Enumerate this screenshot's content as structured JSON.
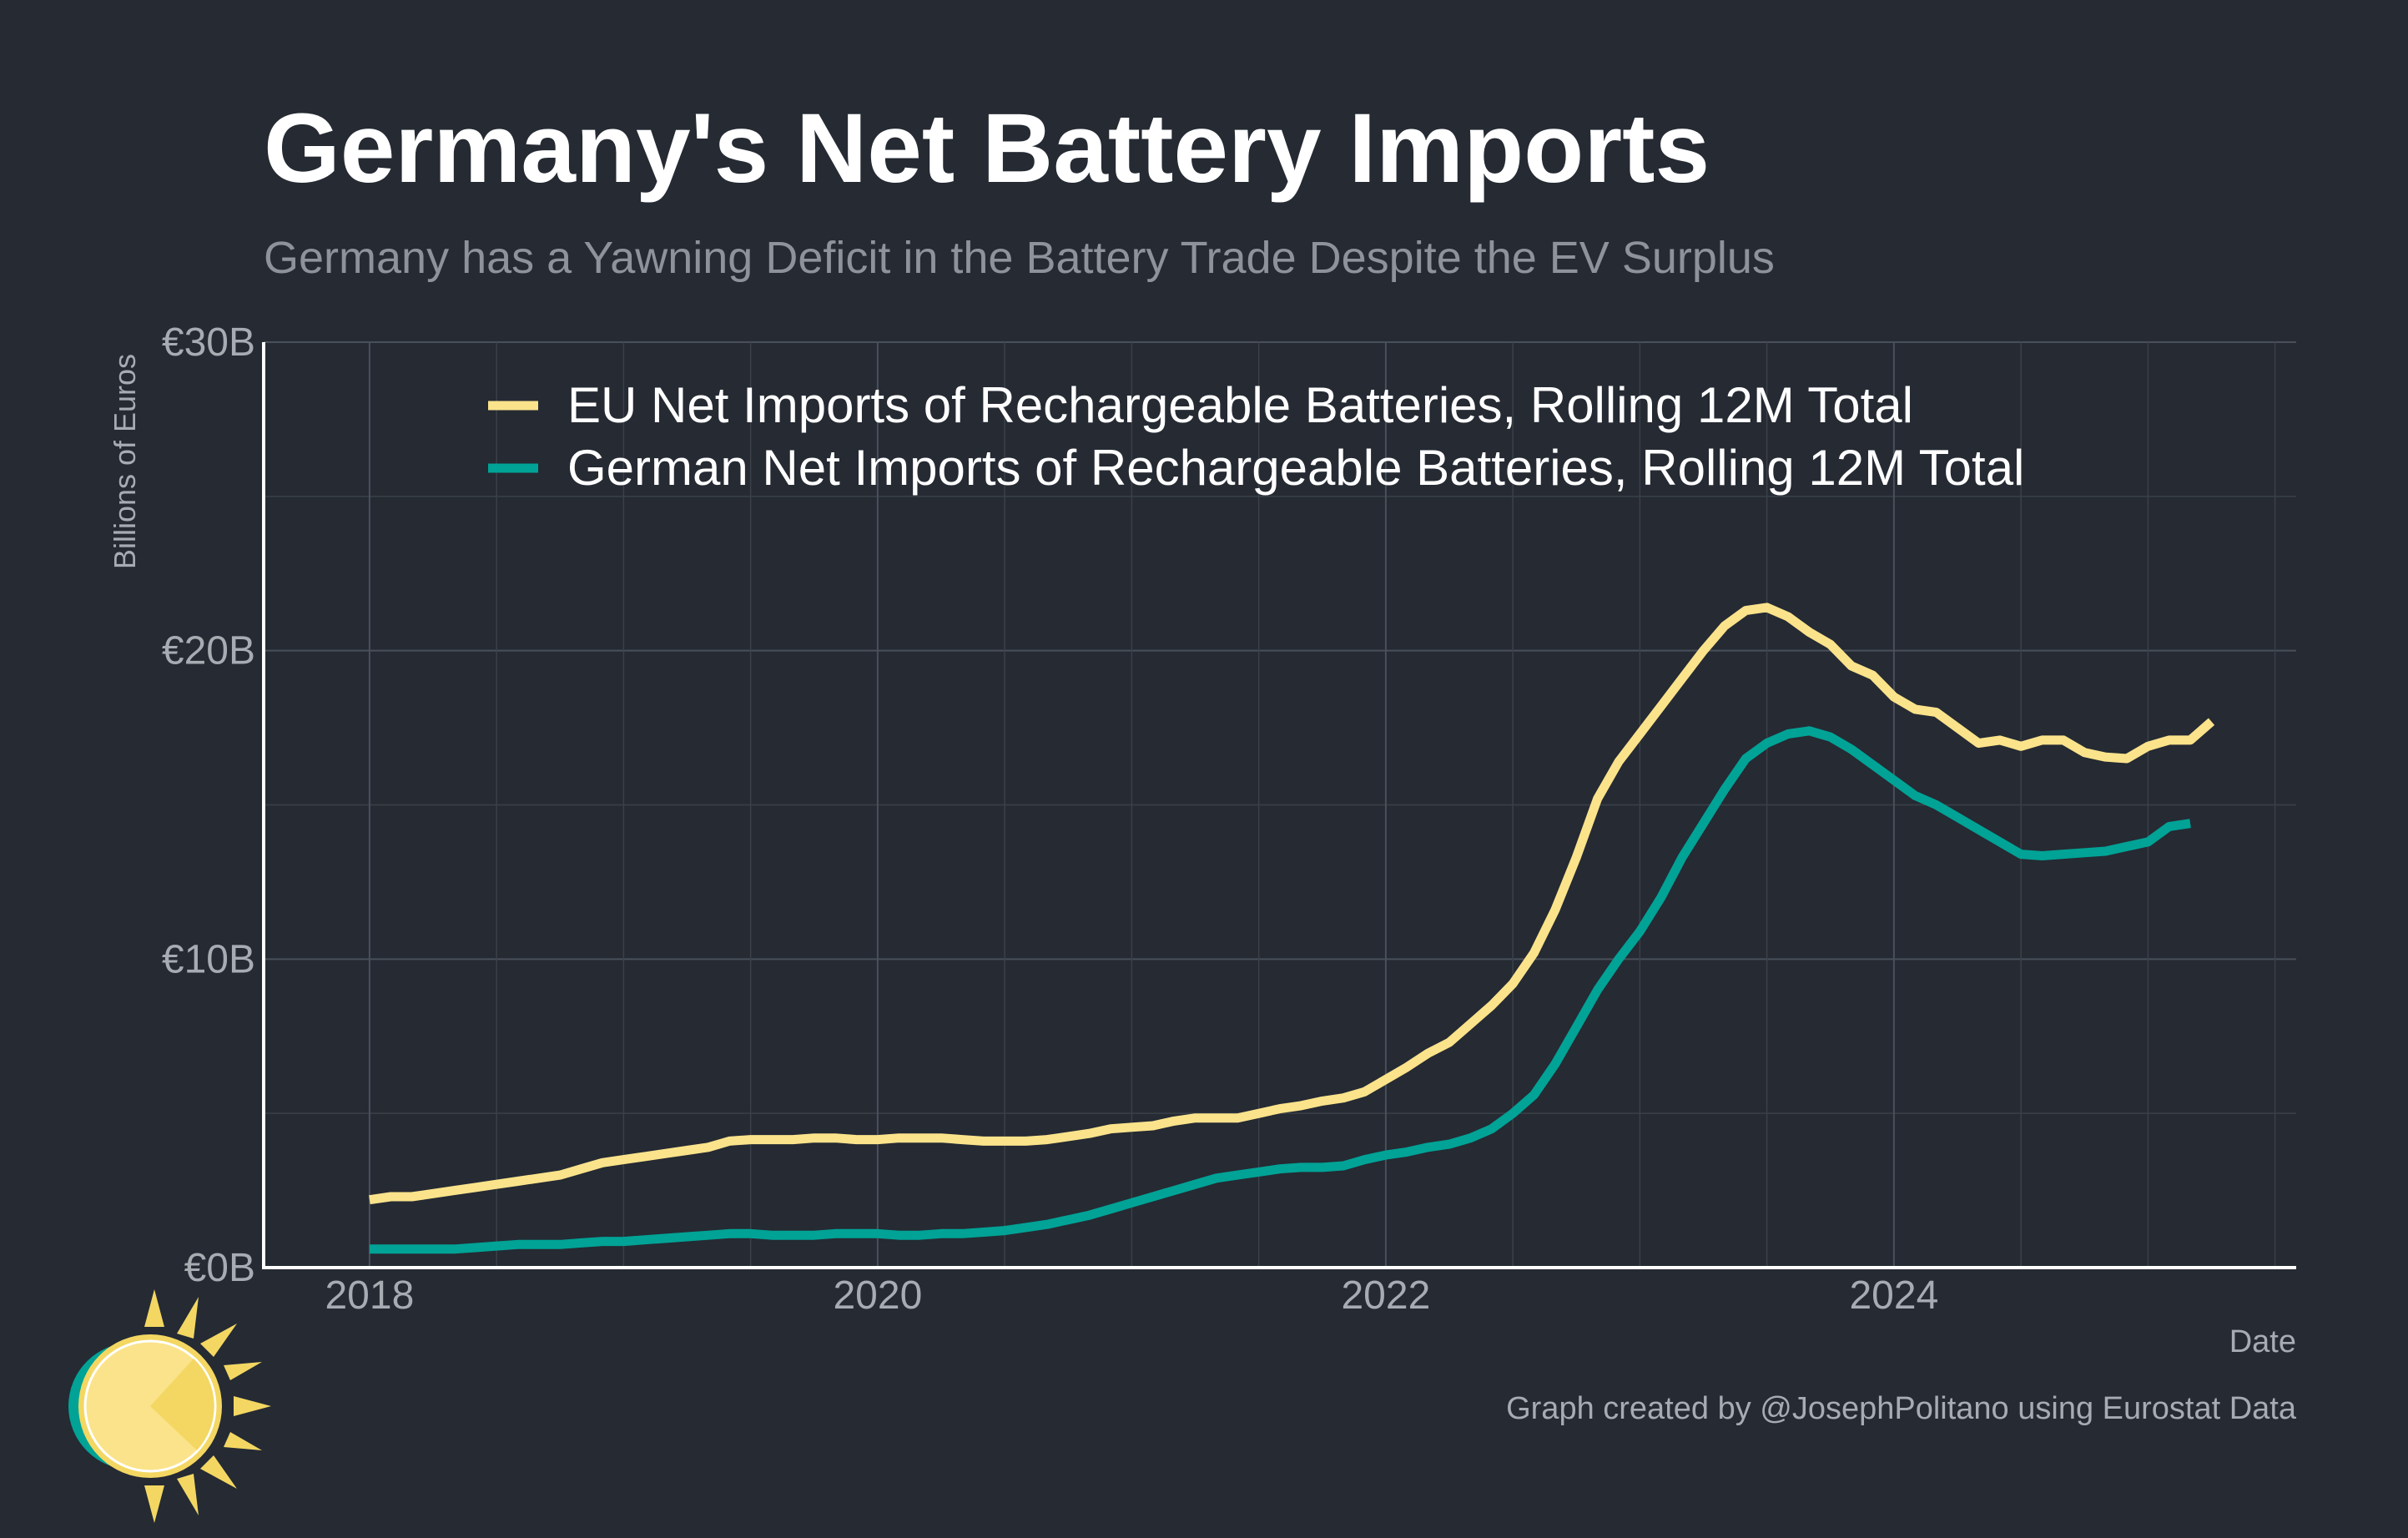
{
  "chart_data": {
    "type": "line",
    "title": "Germany's Net Battery Imports",
    "subtitle": "Germany has a Yawning Deficit in the Battery Trade Despite the EV Surplus",
    "xlabel": "Date",
    "ylabel": "Billions of Euros",
    "caption": "Graph created by @JosephPolitano using Eurostat Data",
    "x_ticks": [
      "2018",
      "2020",
      "2022",
      "2024"
    ],
    "y_ticks": [
      "€0B",
      "€10B",
      "€20B",
      "€30B"
    ],
    "ylim": [
      0,
      30
    ],
    "xlim": [
      "2017-08",
      "2025-08"
    ],
    "grid": true,
    "legend_position": "top-left",
    "series": [
      {
        "name": "EU Net Imports of Rechargeable Batteries, Rolling 12M Total",
        "color": "#fbe38b",
        "points": [
          [
            "2018-01",
            2.2
          ],
          [
            "2018-02",
            2.3
          ],
          [
            "2018-03",
            2.3
          ],
          [
            "2018-04",
            2.4
          ],
          [
            "2018-05",
            2.5
          ],
          [
            "2018-06",
            2.6
          ],
          [
            "2018-07",
            2.7
          ],
          [
            "2018-08",
            2.8
          ],
          [
            "2018-09",
            2.9
          ],
          [
            "2018-10",
            3.0
          ],
          [
            "2018-11",
            3.2
          ],
          [
            "2018-12",
            3.4
          ],
          [
            "2019-01",
            3.5
          ],
          [
            "2019-02",
            3.6
          ],
          [
            "2019-03",
            3.7
          ],
          [
            "2019-04",
            3.8
          ],
          [
            "2019-05",
            3.9
          ],
          [
            "2019-06",
            4.1
          ],
          [
            "2019-07",
            4.15
          ],
          [
            "2019-08",
            4.15
          ],
          [
            "2019-09",
            4.15
          ],
          [
            "2019-10",
            4.2
          ],
          [
            "2019-11",
            4.2
          ],
          [
            "2019-12",
            4.15
          ],
          [
            "2020-01",
            4.15
          ],
          [
            "2020-02",
            4.2
          ],
          [
            "2020-03",
            4.2
          ],
          [
            "2020-04",
            4.2
          ],
          [
            "2020-05",
            4.15
          ],
          [
            "2020-06",
            4.1
          ],
          [
            "2020-07",
            4.1
          ],
          [
            "2020-08",
            4.1
          ],
          [
            "2020-09",
            4.15
          ],
          [
            "2020-10",
            4.25
          ],
          [
            "2020-11",
            4.35
          ],
          [
            "2020-12",
            4.5
          ],
          [
            "2021-01",
            4.55
          ],
          [
            "2021-02",
            4.6
          ],
          [
            "2021-03",
            4.75
          ],
          [
            "2021-04",
            4.85
          ],
          [
            "2021-05",
            4.85
          ],
          [
            "2021-06",
            4.85
          ],
          [
            "2021-07",
            5.0
          ],
          [
            "2021-08",
            5.15
          ],
          [
            "2021-09",
            5.25
          ],
          [
            "2021-10",
            5.4
          ],
          [
            "2021-11",
            5.5
          ],
          [
            "2021-12",
            5.7
          ],
          [
            "2022-01",
            6.1
          ],
          [
            "2022-02",
            6.5
          ],
          [
            "2022-03",
            6.95
          ],
          [
            "2022-04",
            7.3
          ],
          [
            "2022-05",
            7.9
          ],
          [
            "2022-06",
            8.5
          ],
          [
            "2022-07",
            9.2
          ],
          [
            "2022-08",
            10.2
          ],
          [
            "2022-09",
            11.6
          ],
          [
            "2022-10",
            13.3
          ],
          [
            "2022-11",
            15.2
          ],
          [
            "2022-12",
            16.4
          ],
          [
            "2023-01",
            17.3
          ],
          [
            "2023-02",
            18.2
          ],
          [
            "2023-03",
            19.1
          ],
          [
            "2023-04",
            20.0
          ],
          [
            "2023-05",
            20.8
          ],
          [
            "2023-06",
            21.3
          ],
          [
            "2023-07",
            21.4
          ],
          [
            "2023-08",
            21.1
          ],
          [
            "2023-09",
            20.6
          ],
          [
            "2023-10",
            20.2
          ],
          [
            "2023-11",
            19.5
          ],
          [
            "2023-12",
            19.2
          ],
          [
            "2024-01",
            18.5
          ],
          [
            "2024-02",
            18.1
          ],
          [
            "2024-03",
            18.0
          ],
          [
            "2024-04",
            17.5
          ],
          [
            "2024-05",
            17.0
          ],
          [
            "2024-06",
            17.1
          ],
          [
            "2024-07",
            16.9
          ],
          [
            "2024-08",
            17.1
          ],
          [
            "2024-09",
            17.1
          ],
          [
            "2024-10",
            16.7
          ],
          [
            "2024-11",
            16.55
          ],
          [
            "2024-12",
            16.5
          ],
          [
            "2025-01",
            16.9
          ],
          [
            "2025-02",
            17.1
          ],
          [
            "2025-03",
            17.1
          ],
          [
            "2025-04",
            17.7
          ]
        ]
      },
      {
        "name": "German Net Imports of Rechargeable Batteries, Rolling 12M Total",
        "color": "#00a396",
        "points": [
          [
            "2018-01",
            0.6
          ],
          [
            "2018-02",
            0.6
          ],
          [
            "2018-03",
            0.6
          ],
          [
            "2018-04",
            0.6
          ],
          [
            "2018-05",
            0.6
          ],
          [
            "2018-06",
            0.65
          ],
          [
            "2018-07",
            0.7
          ],
          [
            "2018-08",
            0.75
          ],
          [
            "2018-09",
            0.75
          ],
          [
            "2018-10",
            0.75
          ],
          [
            "2018-11",
            0.8
          ],
          [
            "2018-12",
            0.85
          ],
          [
            "2019-01",
            0.85
          ],
          [
            "2019-02",
            0.9
          ],
          [
            "2019-03",
            0.95
          ],
          [
            "2019-04",
            1.0
          ],
          [
            "2019-05",
            1.05
          ],
          [
            "2019-06",
            1.1
          ],
          [
            "2019-07",
            1.1
          ],
          [
            "2019-08",
            1.05
          ],
          [
            "2019-09",
            1.05
          ],
          [
            "2019-10",
            1.05
          ],
          [
            "2019-11",
            1.1
          ],
          [
            "2019-12",
            1.1
          ],
          [
            "2020-01",
            1.1
          ],
          [
            "2020-02",
            1.05
          ],
          [
            "2020-03",
            1.05
          ],
          [
            "2020-04",
            1.1
          ],
          [
            "2020-05",
            1.1
          ],
          [
            "2020-06",
            1.15
          ],
          [
            "2020-07",
            1.2
          ],
          [
            "2020-08",
            1.3
          ],
          [
            "2020-09",
            1.4
          ],
          [
            "2020-10",
            1.55
          ],
          [
            "2020-11",
            1.7
          ],
          [
            "2020-12",
            1.9
          ],
          [
            "2021-01",
            2.1
          ],
          [
            "2021-02",
            2.3
          ],
          [
            "2021-03",
            2.5
          ],
          [
            "2021-04",
            2.7
          ],
          [
            "2021-05",
            2.9
          ],
          [
            "2021-06",
            3.0
          ],
          [
            "2021-07",
            3.1
          ],
          [
            "2021-08",
            3.2
          ],
          [
            "2021-09",
            3.25
          ],
          [
            "2021-10",
            3.25
          ],
          [
            "2021-11",
            3.3
          ],
          [
            "2021-12",
            3.5
          ],
          [
            "2022-01",
            3.65
          ],
          [
            "2022-02",
            3.75
          ],
          [
            "2022-03",
            3.9
          ],
          [
            "2022-04",
            4.0
          ],
          [
            "2022-05",
            4.2
          ],
          [
            "2022-06",
            4.5
          ],
          [
            "2022-07",
            5.0
          ],
          [
            "2022-08",
            5.6
          ],
          [
            "2022-09",
            6.6
          ],
          [
            "2022-10",
            7.8
          ],
          [
            "2022-11",
            9.0
          ],
          [
            "2022-12",
            10.0
          ],
          [
            "2023-01",
            10.9
          ],
          [
            "2023-02",
            12.0
          ],
          [
            "2023-03",
            13.3
          ],
          [
            "2023-04",
            14.4
          ],
          [
            "2023-05",
            15.5
          ],
          [
            "2023-06",
            16.5
          ],
          [
            "2023-07",
            17.0
          ],
          [
            "2023-08",
            17.3
          ],
          [
            "2023-09",
            17.4
          ],
          [
            "2023-10",
            17.2
          ],
          [
            "2023-11",
            16.8
          ],
          [
            "2023-12",
            16.3
          ],
          [
            "2024-01",
            15.8
          ],
          [
            "2024-02",
            15.3
          ],
          [
            "2024-03",
            15.0
          ],
          [
            "2024-04",
            14.6
          ],
          [
            "2024-05",
            14.2
          ],
          [
            "2024-06",
            13.8
          ],
          [
            "2024-07",
            13.4
          ],
          [
            "2024-08",
            13.35
          ],
          [
            "2024-09",
            13.4
          ],
          [
            "2024-10",
            13.45
          ],
          [
            "2024-11",
            13.5
          ],
          [
            "2024-12",
            13.65
          ],
          [
            "2025-01",
            13.8
          ],
          [
            "2025-02",
            14.3
          ],
          [
            "2025-03",
            14.4
          ]
        ]
      }
    ]
  }
}
